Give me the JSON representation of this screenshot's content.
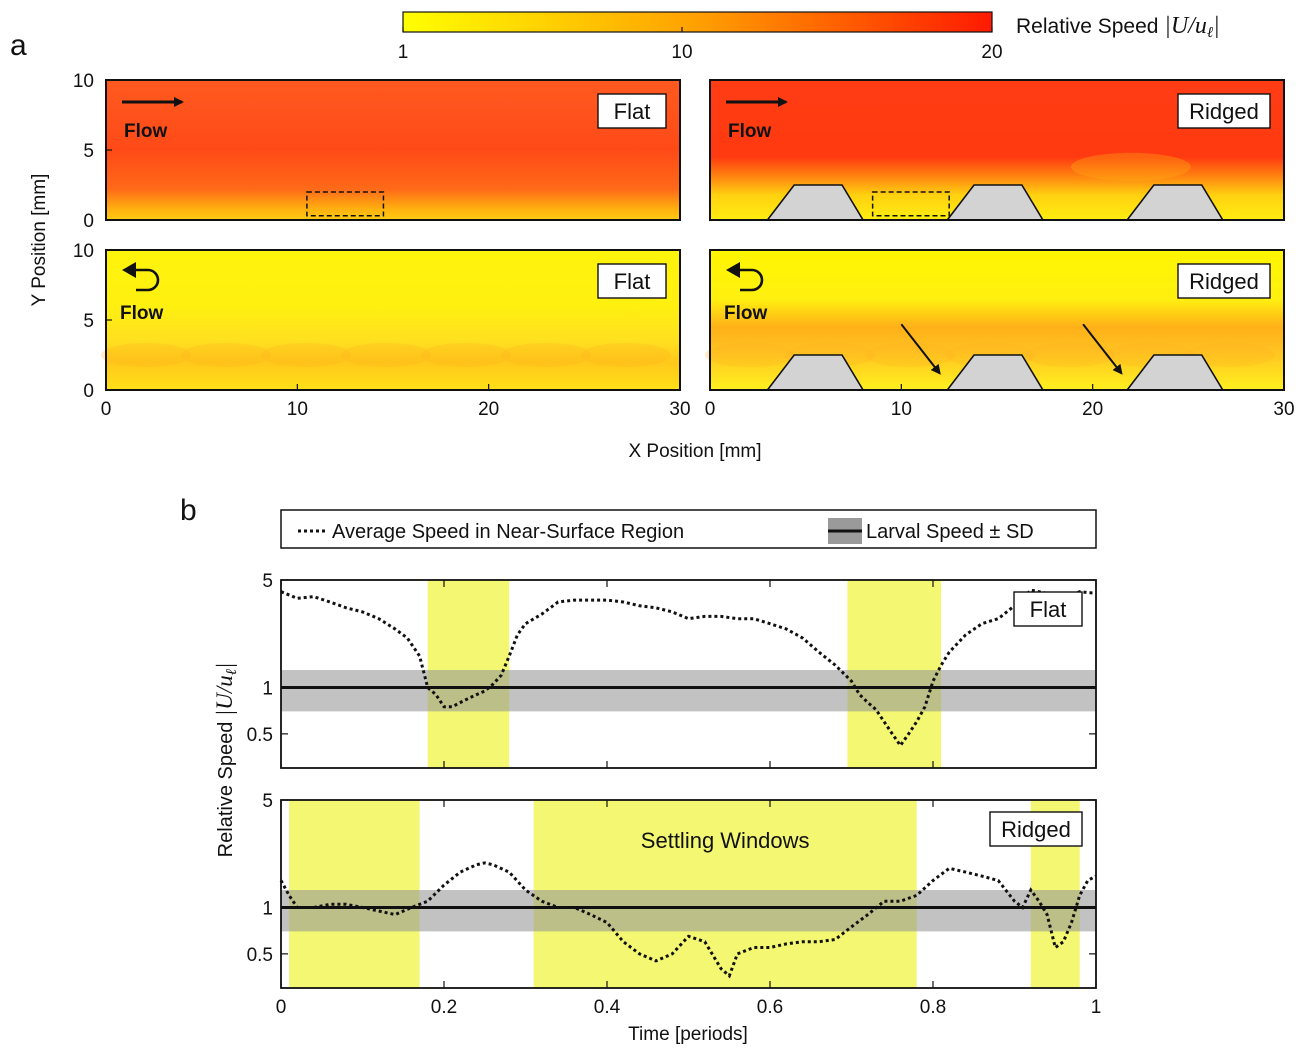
{
  "figure": {
    "panel_a_letter": "a",
    "panel_b_letter": "b",
    "colorbar": {
      "label_text": "Relative Speed ",
      "label_math": "|U/u",
      "label_sub": "ℓ",
      "label_close": "|",
      "ticks": [
        "1",
        "10",
        "20"
      ],
      "range": [
        1,
        20
      ],
      "color_low": "#ffff00",
      "color_high": "#ff0000"
    },
    "panel_a": {
      "x_label": "X Position [mm]",
      "y_label": "Y Position [mm]",
      "x_ticks": [
        "0",
        "10",
        "20",
        "30"
      ],
      "y_ticks": [
        "0",
        "5",
        "10"
      ],
      "x_range": [
        0,
        30
      ],
      "y_range": [
        0,
        10
      ],
      "flow_label": "Flow",
      "tl_tag": "Flat",
      "tr_tag": "Ridged",
      "bl_tag": "Flat",
      "br_tag": "Ridged",
      "ridge_color": "#d3d3d3"
    },
    "panel_b": {
      "legend_dotted": "Average Speed in Near-Surface Region",
      "legend_solid": "Larval Speed ± SD",
      "x_label": "Time [periods]",
      "y_label_text": "Relative  Speed  ",
      "y_label_math": "|U/u",
      "y_label_sub": "ℓ",
      "y_label_close": "|",
      "x_ticks": [
        "0",
        "0.2",
        "0.4",
        "0.6",
        "0.8",
        "1"
      ],
      "y_ticks": [
        "0.5",
        "1",
        "5"
      ],
      "top_tag": "Flat",
      "bottom_tag": "Ridged",
      "annotation": "Settling Windows",
      "window_color": "#f2f76a",
      "band_color": "#9a9a9a"
    }
  },
  "chart_data": [
    {
      "type": "heatmap",
      "title": "Flat",
      "flow": "Flow",
      "x_range": [
        0,
        30
      ],
      "y_range": [
        0,
        10
      ],
      "xlabel": "X Position [mm]",
      "ylabel": "Y Position [mm]",
      "colorbar_range": [
        1,
        20
      ],
      "ridges_x": [],
      "near_surface_box": [
        10.5,
        14.5,
        0.3,
        2.0
      ]
    },
    {
      "type": "heatmap",
      "title": "Ridged",
      "flow": "Flow",
      "x_range": [
        0,
        30
      ],
      "y_range": [
        0,
        10
      ],
      "xlabel": "X Position [mm]",
      "ylabel": "",
      "colorbar_range": [
        1,
        20
      ],
      "ridges_x": [
        [
          3,
          5,
          8
        ],
        [
          12.4,
          14.5,
          17.4
        ],
        [
          21.8,
          24,
          26.8
        ]
      ],
      "ridge_height": 2.5,
      "near_surface_box": [
        8.5,
        12.5,
        0.3,
        2.0
      ]
    },
    {
      "type": "heatmap",
      "title": "Flat",
      "flow": "Flow",
      "x_range": [
        0,
        30
      ],
      "y_range": [
        0,
        10
      ],
      "xlabel": "X Position [mm]",
      "ylabel": "Y Position [mm]",
      "colorbar_range": [
        1,
        20
      ],
      "ridges_x": []
    },
    {
      "type": "heatmap",
      "title": "Ridged",
      "flow": "Flow",
      "x_range": [
        0,
        30
      ],
      "y_range": [
        0,
        10
      ],
      "xlabel": "X Position [mm]",
      "ylabel": "",
      "colorbar_range": [
        1,
        20
      ],
      "ridges_x": [
        [
          3,
          5,
          8
        ],
        [
          12.4,
          14.5,
          17.4
        ],
        [
          21.8,
          24,
          26.8
        ]
      ],
      "ridge_height": 2.5,
      "arrows": [
        [
          10,
          4.7,
          12,
          1.2
        ],
        [
          19.5,
          4.7,
          21.5,
          1.2
        ]
      ]
    },
    {
      "type": "line",
      "title": "Flat",
      "xlabel": "Time [periods]",
      "ylabel": "Relative Speed |U/uℓ|",
      "xlim": [
        0,
        1
      ],
      "ylim": [
        0.3,
        5
      ],
      "yscale": "log",
      "series": [
        {
          "name": "Average Speed in Near-Surface Region",
          "x": [
            0,
            0.02,
            0.04,
            0.06,
            0.08,
            0.1,
            0.12,
            0.14,
            0.155,
            0.17,
            0.18,
            0.19,
            0.2,
            0.21,
            0.22,
            0.23,
            0.24,
            0.25,
            0.26,
            0.27,
            0.28,
            0.29,
            0.3,
            0.32,
            0.34,
            0.36,
            0.38,
            0.4,
            0.42,
            0.44,
            0.46,
            0.48,
            0.5,
            0.52,
            0.54,
            0.56,
            0.58,
            0.6,
            0.62,
            0.64,
            0.66,
            0.68,
            0.7,
            0.71,
            0.72,
            0.73,
            0.74,
            0.75,
            0.76,
            0.77,
            0.78,
            0.79,
            0.8,
            0.81,
            0.82,
            0.84,
            0.86,
            0.88,
            0.9,
            0.92,
            0.94,
            0.96,
            0.98,
            1
          ],
          "y": [
            4.2,
            3.8,
            3.9,
            3.6,
            3.3,
            3.1,
            2.8,
            2.4,
            2.1,
            1.6,
            1.0,
            0.9,
            0.75,
            0.75,
            0.8,
            0.85,
            0.9,
            0.95,
            1.05,
            1.2,
            1.6,
            2.2,
            2.6,
            3.0,
            3.6,
            3.7,
            3.7,
            3.7,
            3.6,
            3.4,
            3.3,
            3.1,
            2.8,
            2.9,
            2.9,
            2.8,
            2.8,
            2.6,
            2.4,
            2.1,
            1.7,
            1.4,
            1.1,
            0.9,
            0.8,
            0.72,
            0.6,
            0.5,
            0.42,
            0.5,
            0.6,
            0.75,
            1.1,
            1.4,
            1.7,
            2.2,
            2.6,
            2.8,
            3.4,
            4.3,
            4.1,
            3.8,
            4.2,
            4.1
          ]
        },
        {
          "name": "Larval Speed ± SD",
          "value": 1,
          "sd_range": [
            0.7,
            1.3
          ]
        }
      ],
      "settling_windows": [
        [
          0.18,
          0.28
        ],
        [
          0.695,
          0.81
        ]
      ]
    },
    {
      "type": "line",
      "title": "Ridged",
      "xlabel": "Time [periods]",
      "ylabel": "Relative Speed |U/uℓ|",
      "xlim": [
        0,
        1
      ],
      "ylim": [
        0.3,
        5
      ],
      "yscale": "log",
      "annotation": "Settling Windows",
      "series": [
        {
          "name": "Average Speed in Near-Surface Region",
          "x": [
            0,
            0.01,
            0.02,
            0.04,
            0.06,
            0.08,
            0.1,
            0.12,
            0.14,
            0.16,
            0.18,
            0.2,
            0.22,
            0.24,
            0.25,
            0.26,
            0.28,
            0.3,
            0.32,
            0.34,
            0.36,
            0.38,
            0.4,
            0.42,
            0.44,
            0.46,
            0.48,
            0.5,
            0.52,
            0.54,
            0.55,
            0.56,
            0.58,
            0.6,
            0.62,
            0.64,
            0.66,
            0.68,
            0.7,
            0.72,
            0.74,
            0.76,
            0.78,
            0.8,
            0.82,
            0.84,
            0.86,
            0.88,
            0.9,
            0.91,
            0.92,
            0.93,
            0.94,
            0.95,
            0.96,
            0.97,
            0.98,
            0.99,
            1
          ],
          "y": [
            1.5,
            1.2,
            1.0,
            1.0,
            1.05,
            1.05,
            1.0,
            0.95,
            0.9,
            1.0,
            1.1,
            1.4,
            1.7,
            1.9,
            1.95,
            1.9,
            1.7,
            1.3,
            1.1,
            1.0,
            1.0,
            0.9,
            0.8,
            0.6,
            0.5,
            0.45,
            0.5,
            0.65,
            0.6,
            0.4,
            0.36,
            0.5,
            0.55,
            0.55,
            0.58,
            0.6,
            0.6,
            0.62,
            0.75,
            0.9,
            1.1,
            1.1,
            1.2,
            1.5,
            1.8,
            1.7,
            1.6,
            1.5,
            1.1,
            1.0,
            1.3,
            1.1,
            0.9,
            0.55,
            0.6,
            0.8,
            1.2,
            1.5,
            1.6
          ]
        },
        {
          "name": "Larval Speed ± SD",
          "value": 1,
          "sd_range": [
            0.7,
            1.3
          ]
        }
      ],
      "settling_windows": [
        [
          0.01,
          0.17
        ],
        [
          0.31,
          0.78
        ],
        [
          0.92,
          0.98
        ]
      ]
    }
  ]
}
